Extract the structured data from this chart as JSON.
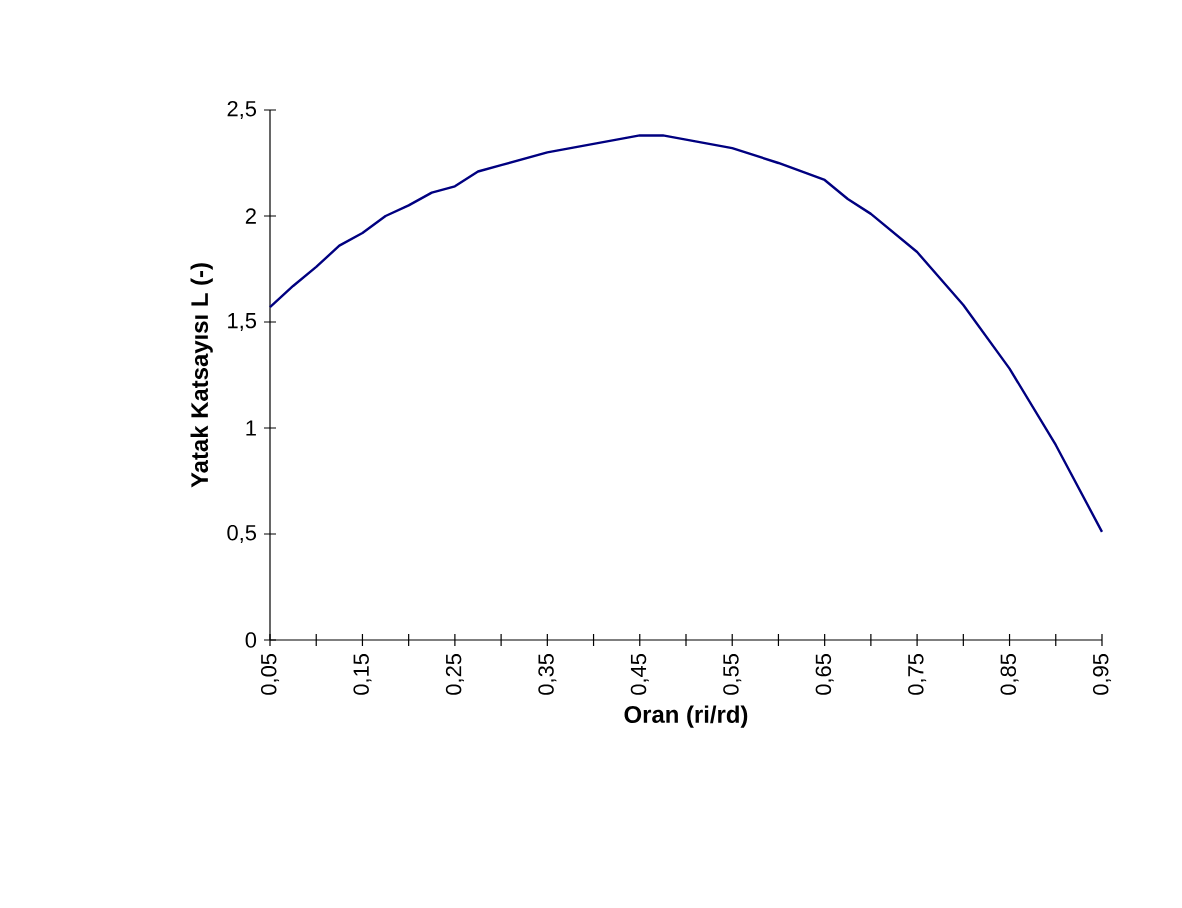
{
  "chart_data": {
    "type": "line",
    "xlabel": "Oran (ri/rd)",
    "ylabel": "Yatak Katsayısı L (-)",
    "x": [
      0.05,
      0.075,
      0.1,
      0.125,
      0.15,
      0.175,
      0.2,
      0.225,
      0.25,
      0.275,
      0.3,
      0.35,
      0.4,
      0.45,
      0.475,
      0.5,
      0.55,
      0.6,
      0.625,
      0.65,
      0.675,
      0.7,
      0.75,
      0.8,
      0.85,
      0.9,
      0.95
    ],
    "series": [
      {
        "color": "#000080",
        "values": [
          1.57,
          1.67,
          1.76,
          1.86,
          1.92,
          2.0,
          2.05,
          2.11,
          2.14,
          2.21,
          2.24,
          2.3,
          2.34,
          2.38,
          2.38,
          2.36,
          2.32,
          2.25,
          2.21,
          2.17,
          2.08,
          2.01,
          1.83,
          1.58,
          1.28,
          0.92,
          0.51
        ]
      }
    ],
    "xlim": [
      0.05,
      0.95
    ],
    "ylim": [
      0,
      2.5
    ],
    "xticks": [
      {
        "value": 0.05,
        "label": "0,05"
      },
      {
        "value": 0.1,
        "label": null
      },
      {
        "value": 0.15,
        "label": "0,15"
      },
      {
        "value": 0.2,
        "label": null
      },
      {
        "value": 0.25,
        "label": "0,25"
      },
      {
        "value": 0.3,
        "label": null
      },
      {
        "value": 0.35,
        "label": "0,35"
      },
      {
        "value": 0.4,
        "label": null
      },
      {
        "value": 0.45,
        "label": "0,45"
      },
      {
        "value": 0.5,
        "label": null
      },
      {
        "value": 0.55,
        "label": "0,55"
      },
      {
        "value": 0.6,
        "label": null
      },
      {
        "value": 0.65,
        "label": "0,65"
      },
      {
        "value": 0.7,
        "label": null
      },
      {
        "value": 0.75,
        "label": "0,75"
      },
      {
        "value": 0.8,
        "label": null
      },
      {
        "value": 0.85,
        "label": "0,85"
      },
      {
        "value": 0.9,
        "label": null
      },
      {
        "value": 0.95,
        "label": "0,95"
      }
    ],
    "yticks": [
      0,
      {
        "value": 0.5,
        "label": "0,5"
      },
      1,
      {
        "value": 1.5,
        "label": "1,5"
      },
      2,
      {
        "value": 2.5,
        "label": "2,5"
      }
    ],
    "grid": false,
    "marker": "none",
    "line_style": "solid"
  }
}
